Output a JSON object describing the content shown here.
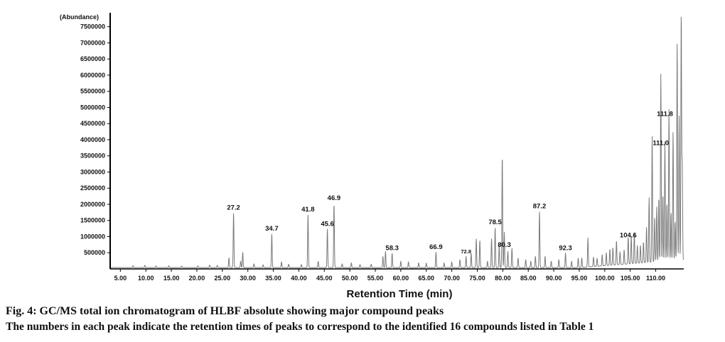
{
  "chart_data": {
    "type": "line",
    "ylabel": "(Abundance)",
    "xlabel": "Retention Time (min)",
    "xlim": [
      3,
      115.5
    ],
    "ylim": [
      0,
      7800000
    ],
    "x_ticks": [
      "5.00",
      "10.00",
      "15.00",
      "20.00",
      "25.00",
      "30.00",
      "35.00",
      "40.00",
      "45.00",
      "50.00",
      "55.00",
      "60.00",
      "65.00",
      "70.00",
      "75.00",
      "80.00",
      "85.00",
      "90.00",
      "95.00",
      "100.00",
      "105.00",
      "110.00"
    ],
    "x_tick_values": [
      5,
      10,
      15,
      20,
      25,
      30,
      35,
      40,
      45,
      50,
      55,
      60,
      65,
      70,
      75,
      80,
      85,
      90,
      95,
      100,
      105,
      110
    ],
    "y_ticks": [
      "500000",
      "1000000",
      "1500000",
      "2000000",
      "2500000",
      "3000000",
      "3500000",
      "4000000",
      "4500000",
      "5000000",
      "5500000",
      "6000000",
      "6500000",
      "7000000",
      "7500000"
    ],
    "y_tick_values": [
      500000,
      1000000,
      1500000,
      2000000,
      2500000,
      3000000,
      3500000,
      4000000,
      4500000,
      5000000,
      5500000,
      6000000,
      6500000,
      7000000,
      7500000
    ],
    "baseline": 40000,
    "peaks": [
      [
        7.5,
        60000
      ],
      [
        9.8,
        70000
      ],
      [
        12.0,
        55000
      ],
      [
        14.5,
        60000
      ],
      [
        17.0,
        50000
      ],
      [
        20.2,
        55000
      ],
      [
        22.5,
        80000
      ],
      [
        24.0,
        70000
      ],
      [
        26.3,
        300000
      ],
      [
        27.2,
        1700000
      ],
      [
        28.6,
        200000
      ],
      [
        29.0,
        480000
      ],
      [
        31.2,
        120000
      ],
      [
        33.0,
        90000
      ],
      [
        34.7,
        1050000
      ],
      [
        36.6,
        180000
      ],
      [
        38.0,
        110000
      ],
      [
        40.5,
        100000
      ],
      [
        41.8,
        1650000
      ],
      [
        43.8,
        200000
      ],
      [
        45.6,
        1200000
      ],
      [
        46.9,
        2000000
      ],
      [
        48.5,
        120000
      ],
      [
        50.3,
        150000
      ],
      [
        52.0,
        100000
      ],
      [
        54.2,
        110000
      ],
      [
        56.5,
        350000
      ],
      [
        57.0,
        500000
      ],
      [
        58.3,
        450000
      ],
      [
        60.0,
        200000
      ],
      [
        61.5,
        180000
      ],
      [
        63.5,
        150000
      ],
      [
        65.0,
        140000
      ],
      [
        66.9,
        480000
      ],
      [
        68.5,
        150000
      ],
      [
        70.0,
        180000
      ],
      [
        71.6,
        250000
      ],
      [
        72.8,
        350000
      ],
      [
        73.8,
        450000
      ],
      [
        74.8,
        900000
      ],
      [
        75.5,
        850000
      ],
      [
        77.0,
        200000
      ],
      [
        77.8,
        900000
      ],
      [
        78.5,
        1250000
      ],
      [
        79.3,
        700000
      ],
      [
        79.9,
        3500000
      ],
      [
        80.3,
        1100000
      ],
      [
        81.0,
        500000
      ],
      [
        81.8,
        600000
      ],
      [
        83.0,
        300000
      ],
      [
        84.5,
        250000
      ],
      [
        85.5,
        200000
      ],
      [
        86.4,
        350000
      ],
      [
        87.2,
        1750000
      ],
      [
        88.3,
        350000
      ],
      [
        89.5,
        200000
      ],
      [
        91.0,
        250000
      ],
      [
        92.3,
        450000
      ],
      [
        93.5,
        200000
      ],
      [
        94.8,
        300000
      ],
      [
        95.5,
        300000
      ],
      [
        96.7,
        900000
      ],
      [
        97.8,
        300000
      ],
      [
        98.5,
        250000
      ],
      [
        99.5,
        350000
      ],
      [
        100.3,
        400000
      ],
      [
        101.0,
        500000
      ],
      [
        101.6,
        550000
      ],
      [
        102.3,
        750000
      ],
      [
        103.0,
        400000
      ],
      [
        103.8,
        450000
      ],
      [
        104.6,
        850000
      ],
      [
        105.2,
        850000
      ],
      [
        105.8,
        950000
      ],
      [
        106.4,
        550000
      ],
      [
        107.0,
        550000
      ],
      [
        107.6,
        650000
      ],
      [
        108.2,
        1100000
      ],
      [
        108.7,
        2000000
      ],
      [
        109.3,
        3950000
      ],
      [
        109.8,
        1400000
      ],
      [
        110.2,
        1700000
      ],
      [
        110.6,
        2000000
      ],
      [
        111.0,
        5800000
      ],
      [
        111.4,
        2100000
      ],
      [
        111.8,
        3700000
      ],
      [
        112.2,
        1800000
      ],
      [
        112.6,
        4700000
      ],
      [
        113.0,
        1500000
      ],
      [
        113.4,
        4000000
      ],
      [
        113.8,
        1200000
      ],
      [
        114.2,
        6800000
      ],
      [
        114.6,
        4500000
      ],
      [
        115.0,
        7800000
      ],
      [
        115.2,
        3000000
      ]
    ],
    "annotations": [
      {
        "x": 27.2,
        "y": 1700000,
        "text": "27.2"
      },
      {
        "x": 34.7,
        "y": 1050000,
        "text": "34.7"
      },
      {
        "x": 41.8,
        "y": 1650000,
        "text": "41.8"
      },
      {
        "x": 45.6,
        "y": 1200000,
        "text": "45.6"
      },
      {
        "x": 46.9,
        "y": 2000000,
        "text": "46.9"
      },
      {
        "x": 58.3,
        "y": 450000,
        "text": "58.3"
      },
      {
        "x": 66.9,
        "y": 480000,
        "text": "66.9"
      },
      {
        "x": 72.8,
        "y": 350000,
        "text": "72.8"
      },
      {
        "x": 78.5,
        "y": 1250000,
        "text": "78.5"
      },
      {
        "x": 80.3,
        "y": 550000,
        "text": "80.3"
      },
      {
        "x": 87.2,
        "y": 1750000,
        "text": "87.2"
      },
      {
        "x": 92.3,
        "y": 450000,
        "text": "92.3"
      },
      {
        "x": 104.6,
        "y": 850000,
        "text": "104.6"
      },
      {
        "x": 111.0,
        "y": 3700000,
        "text": "111.0"
      },
      {
        "x": 111.8,
        "y": 4600000,
        "text": "111.8"
      }
    ],
    "line_color": "#7a7a7a",
    "axis_color": "#000000"
  },
  "caption": {
    "title": "Fig. 4: GC/MS total ion chromatogram of HLBF absolute showing major compound peaks",
    "note": "The numbers in each peak indicate the retention times of peaks to correspond to the identified 16 compounds listed in Table 1"
  }
}
